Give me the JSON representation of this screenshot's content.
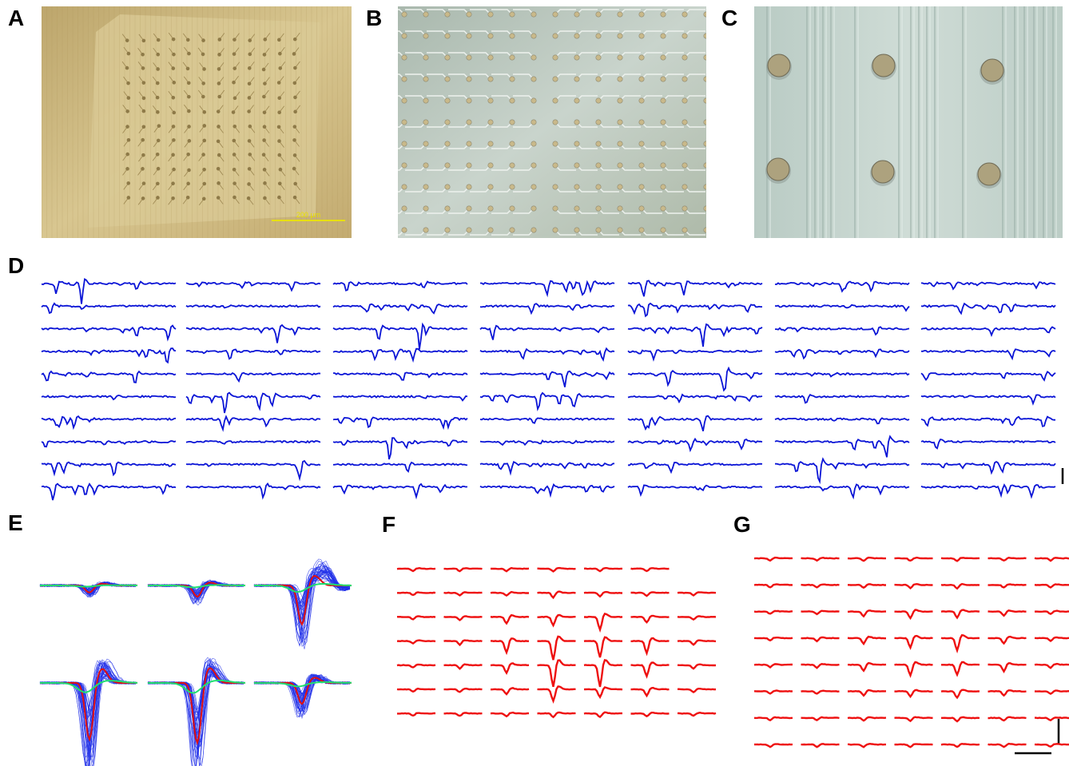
{
  "panels": [
    {
      "label": "A",
      "scale_bar": "200 μm"
    },
    {
      "label": "B"
    },
    {
      "label": "C"
    },
    {
      "label": "D"
    },
    {
      "label": "E"
    },
    {
      "label": "F"
    },
    {
      "label": "G"
    }
  ]
}
